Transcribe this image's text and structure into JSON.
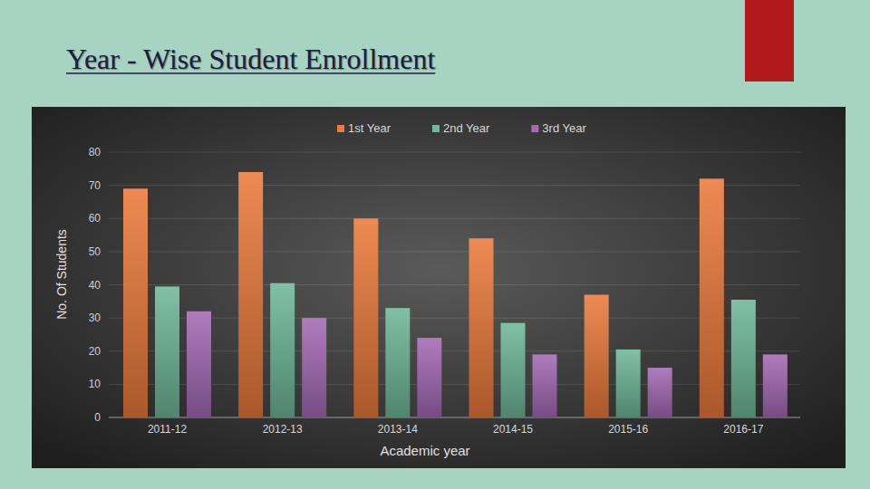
{
  "chart_data": {
    "type": "bar",
    "title": "Year - Wise Student Enrollment",
    "x_label": "Academic year",
    "y_label": "No. Of Students",
    "categories": [
      "2011-12",
      "2012-13",
      "2013-14",
      "2014-15",
      "2015-16",
      "2016-17"
    ],
    "series": [
      {
        "name": "1st Year",
        "color": "#ec7a3c",
        "values": [
          69,
          74,
          60,
          54,
          37,
          72
        ]
      },
      {
        "name": "2nd Year",
        "color": "#6fb899",
        "values": [
          39.5,
          40.5,
          33,
          28.5,
          20.5,
          35.5
        ]
      },
      {
        "name": "3rd Year",
        "color": "#a46ab4",
        "values": [
          32,
          30,
          24,
          19,
          15,
          19
        ]
      }
    ],
    "ylim": [
      0,
      80
    ],
    "yticks": [
      0,
      10,
      20,
      30,
      40,
      50,
      60,
      70,
      80
    ],
    "grid": true,
    "legend": "top"
  }
}
